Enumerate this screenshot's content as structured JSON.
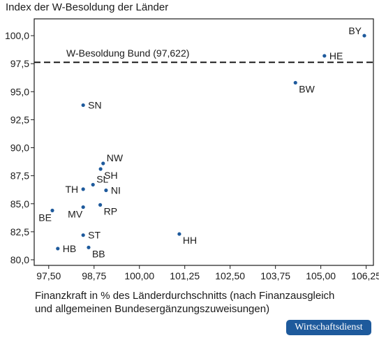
{
  "badge": "Wirtschaftsdienst",
  "chart_data": {
    "type": "scatter",
    "title": "",
    "ylabel": "Index der W-Besoldung der Länder",
    "xlabel_lines": [
      "Finanzkraft in % des Länderdurchschnitts (nach Finanzausgleich",
      "und allgemeinen Bundesergänzungszuweisungen)"
    ],
    "xlim": [
      97.1,
      106.45
    ],
    "ylim": [
      79.5,
      101.5
    ],
    "xticks": [
      97.5,
      98.75,
      100.0,
      101.25,
      102.5,
      103.75,
      105.0,
      106.25
    ],
    "xtick_labels": [
      "97,50",
      "98,75",
      "100,00",
      "101,25",
      "102,50",
      "103,75",
      "105,00",
      "106,25"
    ],
    "yticks": [
      80.0,
      82.5,
      85.0,
      87.5,
      90.0,
      92.5,
      95.0,
      97.5,
      100.0
    ],
    "ytick_labels": [
      "80,0",
      "82,5",
      "85,0",
      "87,5",
      "90,0",
      "92,5",
      "95,0",
      "97,5",
      "100,0"
    ],
    "grid": false,
    "marker_color": "#1e5a9c",
    "reference_line": {
      "y": 97.622,
      "label": "W-Besoldung Bund (97,622)",
      "style": "dashed"
    },
    "points": [
      {
        "label": "BY",
        "x": 106.2,
        "y": 100.0,
        "anchor": "upper-left"
      },
      {
        "label": "HE",
        "x": 105.1,
        "y": 98.2,
        "anchor": "right"
      },
      {
        "label": "BW",
        "x": 104.3,
        "y": 95.8,
        "anchor": "lower-right"
      },
      {
        "label": "SN",
        "x": 98.45,
        "y": 93.8,
        "anchor": "right"
      },
      {
        "label": "NW",
        "x": 99.0,
        "y": 88.6,
        "anchor": "upper-right"
      },
      {
        "label": "SH",
        "x": 98.93,
        "y": 88.1,
        "anchor": "lower-right"
      },
      {
        "label": "SL",
        "x": 98.72,
        "y": 86.7,
        "anchor": "upper-right"
      },
      {
        "label": "TH",
        "x": 98.45,
        "y": 86.3,
        "anchor": "left"
      },
      {
        "label": "NI",
        "x": 99.08,
        "y": 86.2,
        "anchor": "right"
      },
      {
        "label": "BE",
        "x": 97.6,
        "y": 84.4,
        "anchor": "lower-left"
      },
      {
        "label": "MV",
        "x": 98.45,
        "y": 84.7,
        "anchor": "lower-left"
      },
      {
        "label": "RP",
        "x": 98.92,
        "y": 84.9,
        "anchor": "lower-right"
      },
      {
        "label": "ST",
        "x": 98.45,
        "y": 82.2,
        "anchor": "right"
      },
      {
        "label": "HH",
        "x": 101.1,
        "y": 82.3,
        "anchor": "lower-right"
      },
      {
        "label": "HB",
        "x": 97.75,
        "y": 81.0,
        "anchor": "right"
      },
      {
        "label": "BB",
        "x": 98.6,
        "y": 81.1,
        "anchor": "lower-right"
      }
    ]
  }
}
